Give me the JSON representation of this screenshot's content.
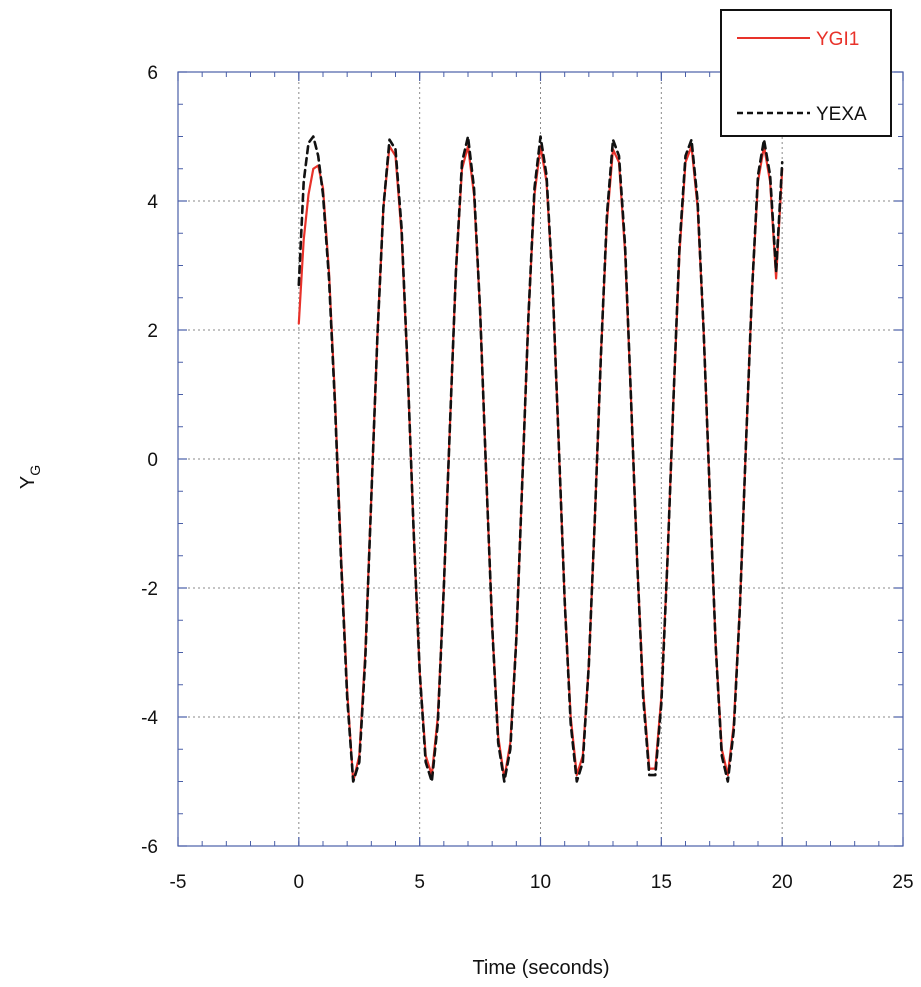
{
  "chart_data": {
    "type": "line",
    "title": "",
    "xlabel": "Time (seconds)",
    "ylabel": {
      "main": "Y",
      "sub": "G"
    },
    "xlim": [
      -5,
      25
    ],
    "ylim": [
      -6,
      6
    ],
    "x_ticks": [
      "-5",
      "0",
      "5",
      "10",
      "15",
      "20",
      "25"
    ],
    "y_ticks": [
      "6",
      "4",
      "2",
      "0",
      "-2",
      "-4",
      "-6"
    ],
    "grid": true,
    "legend_position": "top-right",
    "series": [
      {
        "name": "YGI1",
        "color": "#e8322a",
        "style": "solid",
        "x": [
          0.0,
          0.2,
          0.4,
          0.6,
          0.8,
          1.0,
          1.25,
          1.5,
          1.75,
          2.0,
          2.25,
          2.5,
          2.75,
          3.0,
          3.25,
          3.5,
          3.75,
          4.0,
          4.25,
          4.5,
          4.75,
          5.0,
          5.25,
          5.5,
          5.75,
          6.0,
          6.25,
          6.5,
          6.75,
          7.0,
          7.25,
          7.5,
          7.75,
          8.0,
          8.25,
          8.5,
          8.75,
          9.0,
          9.25,
          9.5,
          9.75,
          10.0,
          10.25,
          10.5,
          10.75,
          11.0,
          11.25,
          11.5,
          11.75,
          12.0,
          12.25,
          12.5,
          12.75,
          13.0,
          13.25,
          13.5,
          13.75,
          14.0,
          14.25,
          14.5,
          14.75,
          15.0,
          15.25,
          15.5,
          15.75,
          16.0,
          16.25,
          16.5,
          16.75,
          17.0,
          17.25,
          17.5,
          17.75,
          18.0,
          18.25,
          18.5,
          18.75,
          19.0,
          19.25,
          19.5,
          19.75,
          20.0
        ],
        "y": [
          2.1,
          3.4,
          4.1,
          4.5,
          4.55,
          4.2,
          2.9,
          0.9,
          -1.5,
          -3.6,
          -5.0,
          -4.6,
          -3.0,
          -0.6,
          1.9,
          3.9,
          4.85,
          4.7,
          3.5,
          1.4,
          -1.1,
          -3.3,
          -4.6,
          -4.9,
          -4.0,
          -2.0,
          0.5,
          2.9,
          4.5,
          4.85,
          4.1,
          2.3,
          -0.2,
          -2.6,
          -4.3,
          -4.95,
          -4.4,
          -2.8,
          -0.3,
          2.2,
          4.1,
          4.85,
          4.3,
          2.7,
          0.3,
          -2.2,
          -4.0,
          -4.9,
          -4.6,
          -3.2,
          -0.9,
          1.6,
          3.7,
          4.8,
          4.6,
          3.2,
          0.9,
          -1.6,
          -3.6,
          -4.8,
          -4.8,
          -3.7,
          -1.6,
          0.9,
          3.2,
          4.6,
          4.85,
          3.9,
          2.0,
          -0.5,
          -2.9,
          -4.5,
          -4.9,
          -4.1,
          -2.3,
          0.2,
          2.6,
          4.3,
          4.85,
          4.3,
          2.8,
          4.5
        ]
      },
      {
        "name": "YEXA",
        "color": "#111111",
        "style": "dashed",
        "x": [
          0.0,
          0.2,
          0.4,
          0.6,
          0.8,
          1.0,
          1.25,
          1.5,
          1.75,
          2.0,
          2.25,
          2.5,
          2.75,
          3.0,
          3.25,
          3.5,
          3.75,
          4.0,
          4.25,
          4.5,
          4.75,
          5.0,
          5.25,
          5.5,
          5.75,
          6.0,
          6.25,
          6.5,
          6.75,
          7.0,
          7.25,
          7.5,
          7.75,
          8.0,
          8.25,
          8.5,
          8.75,
          9.0,
          9.25,
          9.5,
          9.75,
          10.0,
          10.25,
          10.5,
          10.75,
          11.0,
          11.25,
          11.5,
          11.75,
          12.0,
          12.25,
          12.5,
          12.75,
          13.0,
          13.25,
          13.5,
          13.75,
          14.0,
          14.25,
          14.5,
          14.75,
          15.0,
          15.25,
          15.5,
          15.75,
          16.0,
          16.25,
          16.5,
          16.75,
          17.0,
          17.25,
          17.5,
          17.75,
          18.0,
          18.25,
          18.5,
          18.75,
          19.0,
          19.25,
          19.5,
          19.75,
          20.0
        ],
        "y": [
          2.7,
          4.3,
          4.9,
          5.0,
          4.7,
          4.1,
          2.8,
          0.8,
          -1.6,
          -3.7,
          -5.0,
          -4.7,
          -3.1,
          -0.6,
          1.9,
          3.9,
          4.95,
          4.8,
          3.6,
          1.4,
          -1.1,
          -3.3,
          -4.7,
          -5.0,
          -4.1,
          -2.0,
          0.5,
          2.9,
          4.6,
          5.0,
          4.2,
          2.3,
          -0.2,
          -2.6,
          -4.4,
          -5.0,
          -4.5,
          -2.8,
          -0.3,
          2.2,
          4.2,
          5.0,
          4.4,
          2.7,
          0.3,
          -2.2,
          -4.1,
          -5.0,
          -4.7,
          -3.2,
          -0.9,
          1.6,
          3.8,
          4.95,
          4.7,
          3.3,
          0.9,
          -1.6,
          -3.7,
          -4.9,
          -4.9,
          -3.8,
          -1.6,
          0.9,
          3.3,
          4.7,
          4.95,
          4.0,
          2.0,
          -0.5,
          -2.9,
          -4.6,
          -5.0,
          -4.2,
          -2.3,
          0.2,
          2.6,
          4.4,
          4.95,
          4.4,
          2.9,
          4.6
        ]
      }
    ]
  }
}
